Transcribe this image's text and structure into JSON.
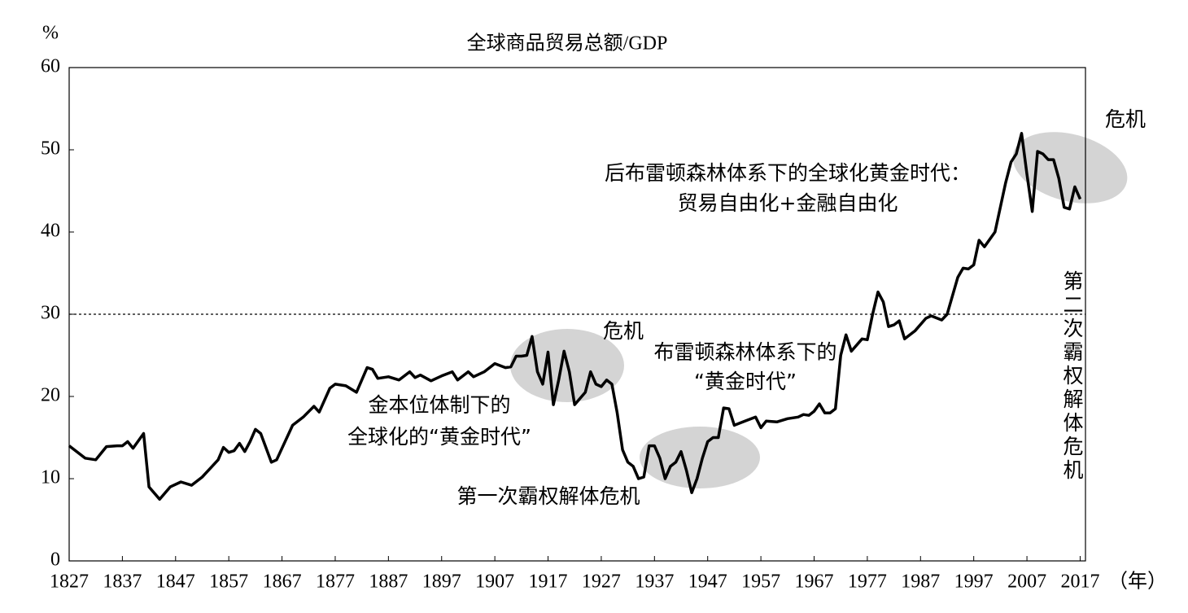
{
  "chart_data": {
    "type": "line",
    "title": "全球商品贸易总额/GDP",
    "y_label": "%",
    "x_label": "（年）",
    "x": [
      1827,
      1830,
      1832,
      1834,
      1836,
      1837,
      1838,
      1839,
      1841,
      1842,
      1844,
      1846,
      1848,
      1850,
      1852,
      1855,
      1856,
      1857,
      1858,
      1859,
      1860,
      1861,
      1862,
      1863,
      1865,
      1866,
      1869,
      1871,
      1873,
      1874,
      1876,
      1877,
      1879,
      1881,
      1883,
      1884,
      1885,
      1887,
      1889,
      1891,
      1892,
      1893,
      1895,
      1897,
      1899,
      1900,
      1901,
      1902,
      1903,
      1905,
      1907,
      1909,
      1910,
      1911,
      1912,
      1913,
      1914,
      1915,
      1916,
      1917,
      1918,
      1919,
      1920,
      1921,
      1922,
      1924,
      1925,
      1926,
      1927,
      1928,
      1929,
      1930,
      1931,
      1932,
      1933,
      1934,
      1935,
      1936,
      1937,
      1938,
      1939,
      1940,
      1941,
      1942,
      1943,
      1944,
      1945,
      1946,
      1947,
      1948,
      1949,
      1950,
      1951,
      1952,
      1954,
      1956,
      1957,
      1958,
      1960,
      1962,
      1964,
      1965,
      1966,
      1967,
      1968,
      1969,
      1970,
      1971,
      1972,
      1973,
      1974,
      1976,
      1977,
      1978,
      1979,
      1980,
      1981,
      1982,
      1983,
      1984,
      1986,
      1988,
      1989,
      1991,
      1992,
      1994,
      1995,
      1996,
      1997,
      1998,
      1999,
      2001,
      2003,
      2004,
      2005,
      2006,
      2007,
      2008,
      2009,
      2010,
      2011,
      2012,
      2013,
      2014,
      2015,
      2016,
      2017
    ],
    "values": [
      14,
      12.5,
      12.3,
      13.9,
      14,
      14,
      14.5,
      13.7,
      15.5,
      9,
      7.5,
      9,
      9.6,
      9.2,
      10.2,
      12.3,
      13.8,
      13.2,
      13.4,
      14.3,
      13.3,
      14.5,
      16,
      15.5,
      12,
      12.3,
      16.5,
      17.5,
      18.8,
      18.1,
      21,
      21.5,
      21.3,
      20.5,
      23.5,
      23.3,
      22.2,
      22.4,
      22,
      23,
      22.3,
      22.6,
      21.9,
      22.5,
      23,
      22,
      22.5,
      23,
      22.4,
      23,
      24,
      23.5,
      23.6,
      24.9,
      24.9,
      25,
      27.3,
      23,
      21.5,
      25.4,
      19,
      22,
      25.5,
      23,
      19,
      20.5,
      23,
      21.5,
      21.2,
      22,
      21.5,
      18,
      13.5,
      12,
      11.5,
      10,
      10.2,
      14,
      14,
      12.5,
      10,
      11.5,
      12,
      13.3,
      11,
      8.3,
      10,
      12.5,
      14.5,
      15,
      15,
      18.6,
      18.5,
      16.5,
      17,
      17.5,
      16.2,
      17,
      16.9,
      17.3,
      17.5,
      17.8,
      17.7,
      18.2,
      19.1,
      18,
      18,
      18.5,
      25,
      27.5,
      25.5,
      27,
      26.9,
      30,
      32.7,
      31.5,
      28.5,
      28.7,
      29.2,
      27,
      28,
      29.5,
      29.8,
      29.3,
      30,
      34.5,
      35.6,
      35.5,
      36,
      39,
      38.2,
      40,
      46,
      48.5,
      49.5,
      52,
      47,
      42.5,
      49.8,
      49.5,
      48.8,
      48.8,
      46.5,
      43,
      42.8,
      45.5,
      44
    ],
    "color": "#000000",
    "reference_line": 30,
    "xlim": [
      1827,
      2018
    ],
    "xticks": [
      1827,
      1837,
      1847,
      1857,
      1867,
      1877,
      1887,
      1897,
      1907,
      1917,
      1927,
      1937,
      1947,
      1957,
      1967,
      1977,
      1987,
      1997,
      2007,
      2017
    ],
    "ylim": [
      0,
      60
    ],
    "yticks": [
      0,
      10,
      20,
      30,
      40,
      50,
      60
    ],
    "annotations": [
      "危机",
      "后布雷顿森林体系下的全球化黄金时代：",
      "贸易自由化+金融自由化",
      "第二次霸权解体危机",
      "危机",
      "布雷顿森林体系下的",
      "“黄金时代”",
      "金本位体制下的",
      "全球化的“黄金时代”",
      "第一次霸权解体危机"
    ]
  }
}
